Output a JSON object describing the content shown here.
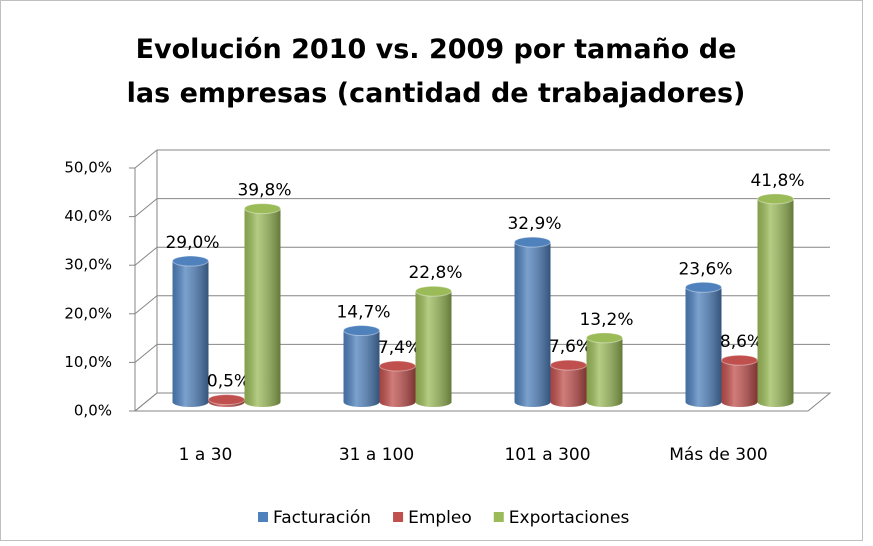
{
  "chart_data": {
    "type": "bar3d",
    "title": "Evolución 2010 vs. 2009 por tamaño de las empresas (cantidad de trabajadores)",
    "categories": [
      "1 a 30",
      "31 a 100",
      "101 a 300",
      "Más de 300"
    ],
    "series": [
      {
        "name": "Facturación",
        "color": "#4f81bd",
        "values": [
          29.0,
          14.7,
          32.9,
          23.6
        ],
        "value_labels": [
          "29,0%",
          "14,7%",
          "32,9%",
          "23,6%"
        ]
      },
      {
        "name": "Empleo",
        "color": "#c0504d",
        "values": [
          0.5,
          7.4,
          7.6,
          8.6
        ],
        "value_labels": [
          "0,5%",
          "7,4%",
          "7,6%",
          "8,6%"
        ]
      },
      {
        "name": "Exportaciones",
        "color": "#9bbb59",
        "values": [
          39.8,
          22.8,
          13.2,
          41.8
        ],
        "value_labels": [
          "39,8%",
          "22,8%",
          "13,2%",
          "41,8%"
        ]
      }
    ],
    "ylim": [
      0,
      50
    ],
    "yticks": [
      {
        "value": 0,
        "label": "0,0%"
      },
      {
        "value": 10,
        "label": "10,0%"
      },
      {
        "value": 20,
        "label": "20,0%"
      },
      {
        "value": 30,
        "label": "30,0%"
      },
      {
        "value": 40,
        "label": "40,0%"
      },
      {
        "value": 50,
        "label": "50,0%"
      }
    ],
    "grid": true,
    "legend": "bottom"
  }
}
